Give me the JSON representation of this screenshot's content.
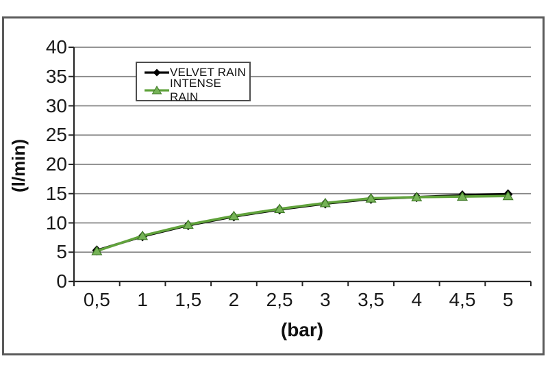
{
  "chart_data": {
    "type": "line",
    "title": "",
    "xlabel": "(bar)",
    "ylabel": "(l/min)",
    "categories": [
      "0,5",
      "1",
      "1,5",
      "2",
      "2,5",
      "3",
      "3,5",
      "4",
      "4,5",
      "5"
    ],
    "series": [
      {
        "name": "VELVET RAIN",
        "color": "#000000",
        "marker": "diamond",
        "marker_fill": "#000000",
        "marker_stroke": "#000000",
        "values": [
          5.3,
          7.7,
          9.6,
          11.1,
          12.3,
          13.3,
          14.1,
          14.4,
          14.7,
          14.9
        ]
      },
      {
        "name": "INTENSE RAIN",
        "color": "#61a33c",
        "marker": "triangle",
        "marker_fill": "#76b357",
        "marker_stroke": "#3f7a27",
        "values": [
          5.2,
          7.8,
          9.7,
          11.2,
          12.4,
          13.4,
          14.2,
          14.4,
          14.5,
          14.6
        ]
      }
    ],
    "y_ticks": [
      0,
      5,
      10,
      15,
      20,
      25,
      30,
      35,
      40
    ],
    "ylim": [
      0,
      40
    ],
    "grid": "horizontal",
    "legend_position": "top-left-inside"
  },
  "colors": {
    "grid": "#858585",
    "axis": "#262626",
    "frame_border": "#5a5a5a",
    "text": "#1a1a1a",
    "background": "#ffffff"
  }
}
